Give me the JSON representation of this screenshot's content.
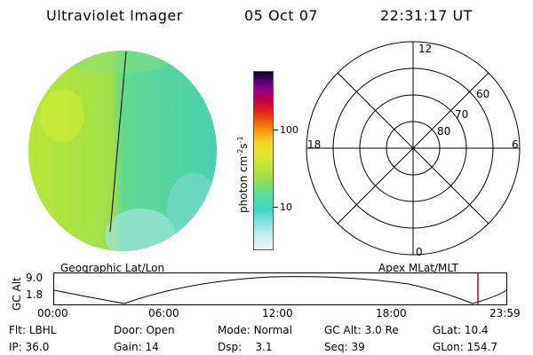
{
  "header": {
    "instrument": "Ultraviolet Imager",
    "date": "05 Oct 07",
    "time": "22:31:17 UT"
  },
  "colorbar": {
    "unit_label": "photon cm",
    "unit_exp1": "-2",
    "unit_s": "s",
    "unit_exp2": "-1",
    "tick_labels": [
      "100",
      "10"
    ]
  },
  "polar_plot": {
    "mlt_labels": {
      "top": "12",
      "left": "18",
      "right": "6",
      "bottom": "0"
    },
    "lat_rings": [
      "60",
      "70",
      "80"
    ]
  },
  "orbit_plot": {
    "left_title": "Geographic Lat/Lon",
    "right_title": "Apex MLat/MLT",
    "y_label": "GC Alt",
    "y_ticks": [
      "9.0",
      "1.8"
    ],
    "x_ticks": [
      "00:00",
      "06:00",
      "12:00",
      "18:00",
      "23:59"
    ],
    "current_marker_color": "#cc0000"
  },
  "info": {
    "flt_label": "Flt:",
    "flt_value": "LBHL",
    "ip_label": "IP:",
    "ip_value": "36.0",
    "door_label": "Door:",
    "door_value": "Open",
    "gain_label": "Gain:",
    "gain_value": "14",
    "mode_label": "Mode:",
    "mode_value": "Normal",
    "dsp_label": "Dsp:",
    "dsp_value": "3.1",
    "gcalt_label": "GC Alt:",
    "gcalt_value": "3.0 Re",
    "seq_label": "Seq:",
    "seq_value": "39",
    "glat_label": "GLat:",
    "glat_value": "10.4",
    "glon_label": "GLon:",
    "glon_value": "154.7"
  }
}
